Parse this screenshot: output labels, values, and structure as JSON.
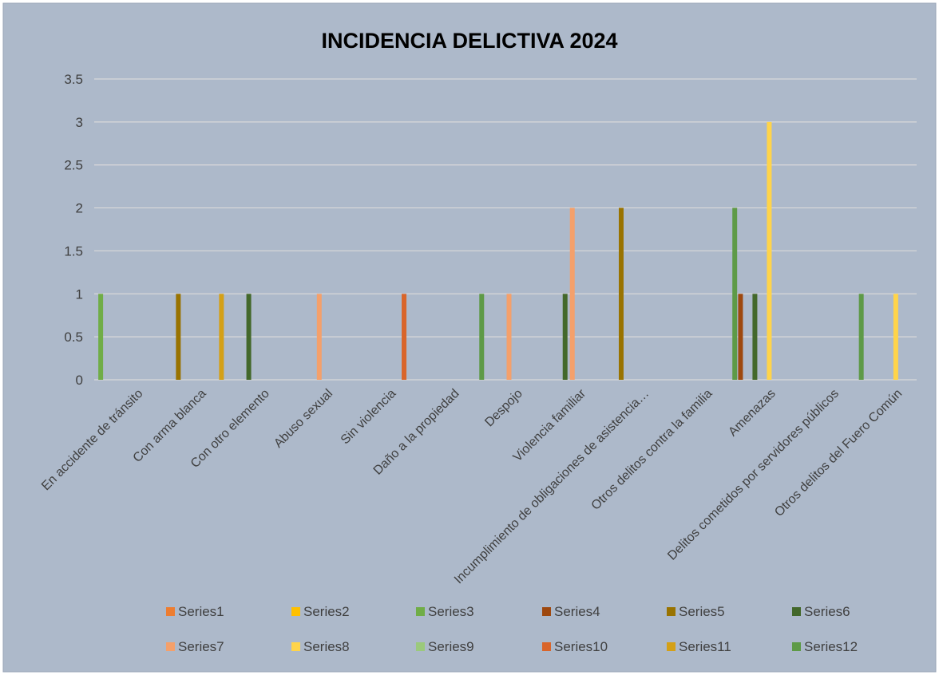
{
  "chart_data": {
    "type": "bar",
    "title": "INCIDENCIA DELICTIVA 2024",
    "xlabel": "",
    "ylabel": "",
    "ylim": [
      0,
      3.5
    ],
    "yticks": [
      0,
      0.5,
      1,
      1.5,
      2,
      2.5,
      3,
      3.5
    ],
    "ytick_labels": [
      "0",
      "0.5",
      "1",
      "1.5",
      "2",
      "2.5",
      "3",
      "3.5"
    ],
    "grid": true,
    "legend_position": "bottom",
    "background_color": "#adb9ca",
    "categories": [
      "En accidente de tránsito",
      "Con arma blanca",
      "Con otro elemento",
      "Abuso sexual",
      "Sin violencia",
      "Daño a la propiedad",
      "Despojo",
      "Violencia familiar",
      "Incumplimiento de obligaciones de asistencia…",
      "Otros delitos contra la familia",
      "Amenazas",
      "Delitos cometidos por servidores públicos",
      "Otros delitos del Fuero Común"
    ],
    "series": [
      {
        "name": "Series1",
        "color": "#ed7d31",
        "values": [
          null,
          null,
          null,
          null,
          null,
          null,
          null,
          null,
          null,
          null,
          null,
          null,
          null
        ]
      },
      {
        "name": "Series2",
        "color": "#ffc000",
        "values": [
          null,
          null,
          null,
          null,
          null,
          null,
          null,
          null,
          null,
          null,
          null,
          null,
          null
        ]
      },
      {
        "name": "Series3",
        "color": "#70ad47",
        "values": [
          1,
          null,
          null,
          null,
          null,
          null,
          null,
          null,
          null,
          null,
          null,
          null,
          null
        ]
      },
      {
        "name": "Series4",
        "color": "#9e480e",
        "values": [
          null,
          null,
          null,
          null,
          null,
          null,
          null,
          null,
          null,
          null,
          1,
          null,
          null
        ]
      },
      {
        "name": "Series5",
        "color": "#997300",
        "values": [
          null,
          1,
          null,
          null,
          null,
          null,
          null,
          null,
          2,
          null,
          null,
          null,
          null
        ]
      },
      {
        "name": "Series6",
        "color": "#43682b",
        "values": [
          null,
          null,
          1,
          null,
          null,
          null,
          null,
          1,
          null,
          null,
          1,
          null,
          null
        ]
      },
      {
        "name": "Series7",
        "color": "#f4a06b",
        "values": [
          null,
          null,
          null,
          1,
          null,
          null,
          1,
          2,
          null,
          null,
          null,
          null,
          null
        ]
      },
      {
        "name": "Series8",
        "color": "#ffd44a",
        "values": [
          null,
          null,
          null,
          null,
          null,
          null,
          null,
          null,
          null,
          null,
          3,
          null,
          1
        ]
      },
      {
        "name": "Series9",
        "color": "#9bc97c",
        "values": [
          null,
          null,
          null,
          null,
          null,
          null,
          null,
          null,
          null,
          null,
          null,
          null,
          null
        ]
      },
      {
        "name": "Series10",
        "color": "#d9652a",
        "values": [
          null,
          null,
          null,
          null,
          1,
          null,
          null,
          null,
          null,
          null,
          null,
          null,
          null
        ]
      },
      {
        "name": "Series11",
        "color": "#d4a017",
        "values": [
          null,
          1,
          null,
          null,
          null,
          null,
          null,
          null,
          null,
          null,
          null,
          null,
          null
        ]
      },
      {
        "name": "Series12",
        "color": "#5e9a47",
        "values": [
          null,
          null,
          null,
          null,
          null,
          1,
          null,
          null,
          null,
          2,
          null,
          1,
          null
        ]
      }
    ]
  }
}
